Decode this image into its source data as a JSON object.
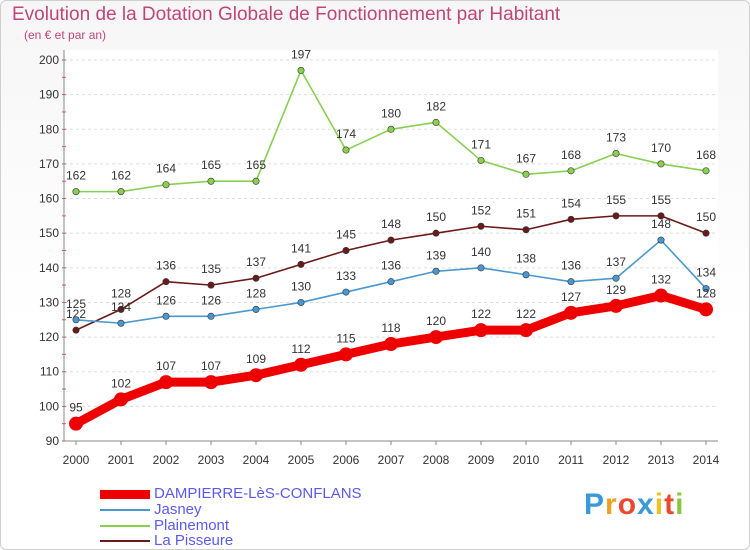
{
  "title": "Evolution de la Dotation Globale de Fonctionnement par Habitant",
  "subtitle": "(en € et par an)",
  "logo_text": "Proxiti",
  "chart_data": {
    "type": "line",
    "x": [
      "2000",
      "2001",
      "2002",
      "2003",
      "2004",
      "2005",
      "2006",
      "2007",
      "2008",
      "2009",
      "2010",
      "2011",
      "2012",
      "2013",
      "2014"
    ],
    "ylim": [
      90,
      200
    ],
    "yticks": [
      90,
      100,
      110,
      120,
      130,
      140,
      150,
      160,
      170,
      180,
      190,
      200
    ],
    "grid": true,
    "legend_position": "bottom-left",
    "series": [
      {
        "name": "DAMPIERRE-LèS-CONFLANS",
        "color": "#ee0000",
        "values": [
          95,
          102,
          107,
          107,
          109,
          112,
          115,
          118,
          120,
          122,
          122,
          127,
          129,
          132,
          128
        ]
      },
      {
        "name": "Jasney",
        "color": "#4a98d0",
        "values": [
          125,
          124,
          126,
          126,
          128,
          130,
          133,
          136,
          139,
          140,
          138,
          136,
          137,
          148,
          134
        ]
      },
      {
        "name": "Plainemont",
        "color": "#88d050",
        "values": [
          162,
          162,
          164,
          165,
          165,
          197,
          174,
          180,
          182,
          171,
          167,
          168,
          173,
          170,
          168
        ]
      },
      {
        "name": "La Pisseure",
        "color": "#6b1a1a",
        "values": [
          122,
          128,
          136,
          135,
          137,
          141,
          145,
          148,
          150,
          152,
          151,
          154,
          155,
          155,
          150
        ]
      }
    ]
  }
}
